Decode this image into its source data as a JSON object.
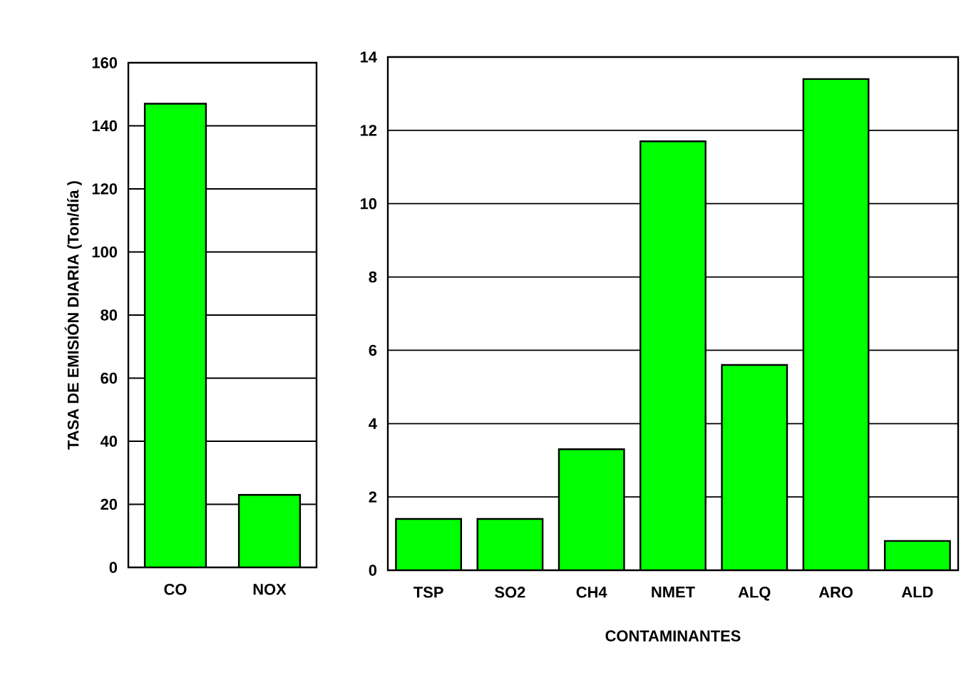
{
  "chart_data": [
    {
      "type": "bar",
      "ylabel": "TASA DE EMISIÓN DIARIA (Ton/día  )",
      "categories": [
        "CO",
        "NOX"
      ],
      "values": [
        147,
        23
      ],
      "color": "#00ff00",
      "ylim": [
        0,
        160
      ],
      "yticks": [
        0,
        20,
        40,
        60,
        80,
        100,
        120,
        140,
        160
      ],
      "grid": "y"
    },
    {
      "type": "bar",
      "xlabel": "CONTAMINANTES",
      "categories": [
        "TSP",
        "SO2",
        "CH4",
        "NMET",
        "ALQ",
        "ARO",
        "ALD"
      ],
      "values": [
        1.4,
        1.4,
        3.3,
        11.7,
        5.6,
        13.4,
        0.8
      ],
      "color": "#00ff00",
      "ylim": [
        0,
        14
      ],
      "yticks": [
        0,
        2,
        4,
        6,
        8,
        10,
        12,
        14
      ],
      "grid": "y"
    }
  ]
}
